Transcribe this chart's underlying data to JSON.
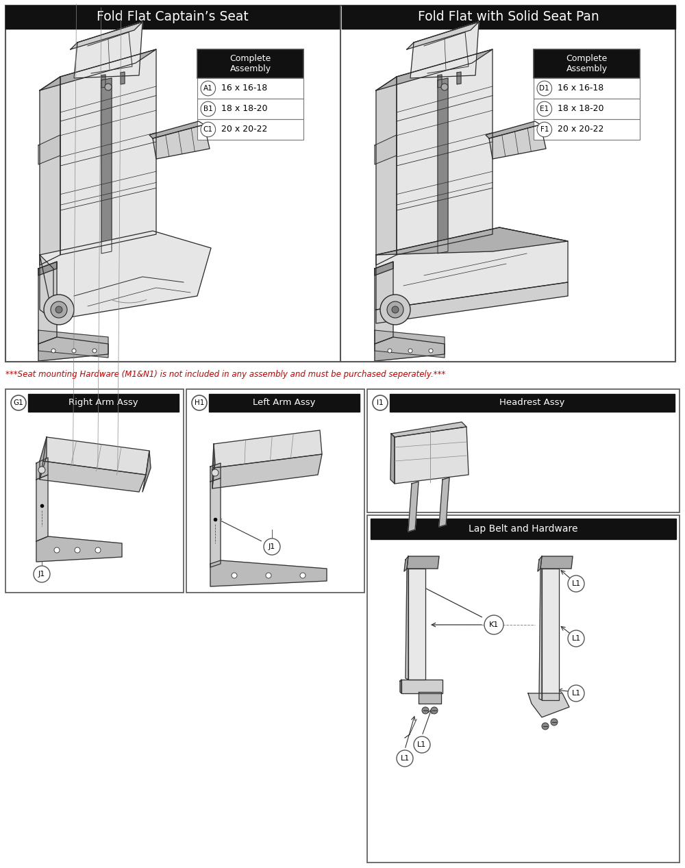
{
  "title_left": "Fold Flat Captain’s Seat",
  "title_right": "Fold Flat with Solid Seat Pan",
  "warning_text": "***Seat mounting Hardware (M1&N1) is not included in any assembly and must be purchased seperately.***",
  "left_table": {
    "header": "Complete\nAssembly",
    "rows": [
      {
        "code": "A1",
        "value": "16 x 16-18"
      },
      {
        "code": "B1",
        "value": "18 x 18-20"
      },
      {
        "code": "C1",
        "value": "20 x 20-22"
      }
    ]
  },
  "right_table": {
    "header": "Complete\nAssembly",
    "rows": [
      {
        "code": "D1",
        "value": "16 x 16-18"
      },
      {
        "code": "E1",
        "value": "18 x 18-20"
      },
      {
        "code": "F1",
        "value": "20 x 20-22"
      }
    ]
  },
  "bg_color": "#ffffff",
  "header_bg": "#111111",
  "header_fg": "#ffffff",
  "border_color": "#555555",
  "warning_color": "#cc0000",
  "lap_belt_title": "Lap Belt and Hardware",
  "subpart_header_bg": "#111111",
  "subpart_header_fg": "#ffffff"
}
